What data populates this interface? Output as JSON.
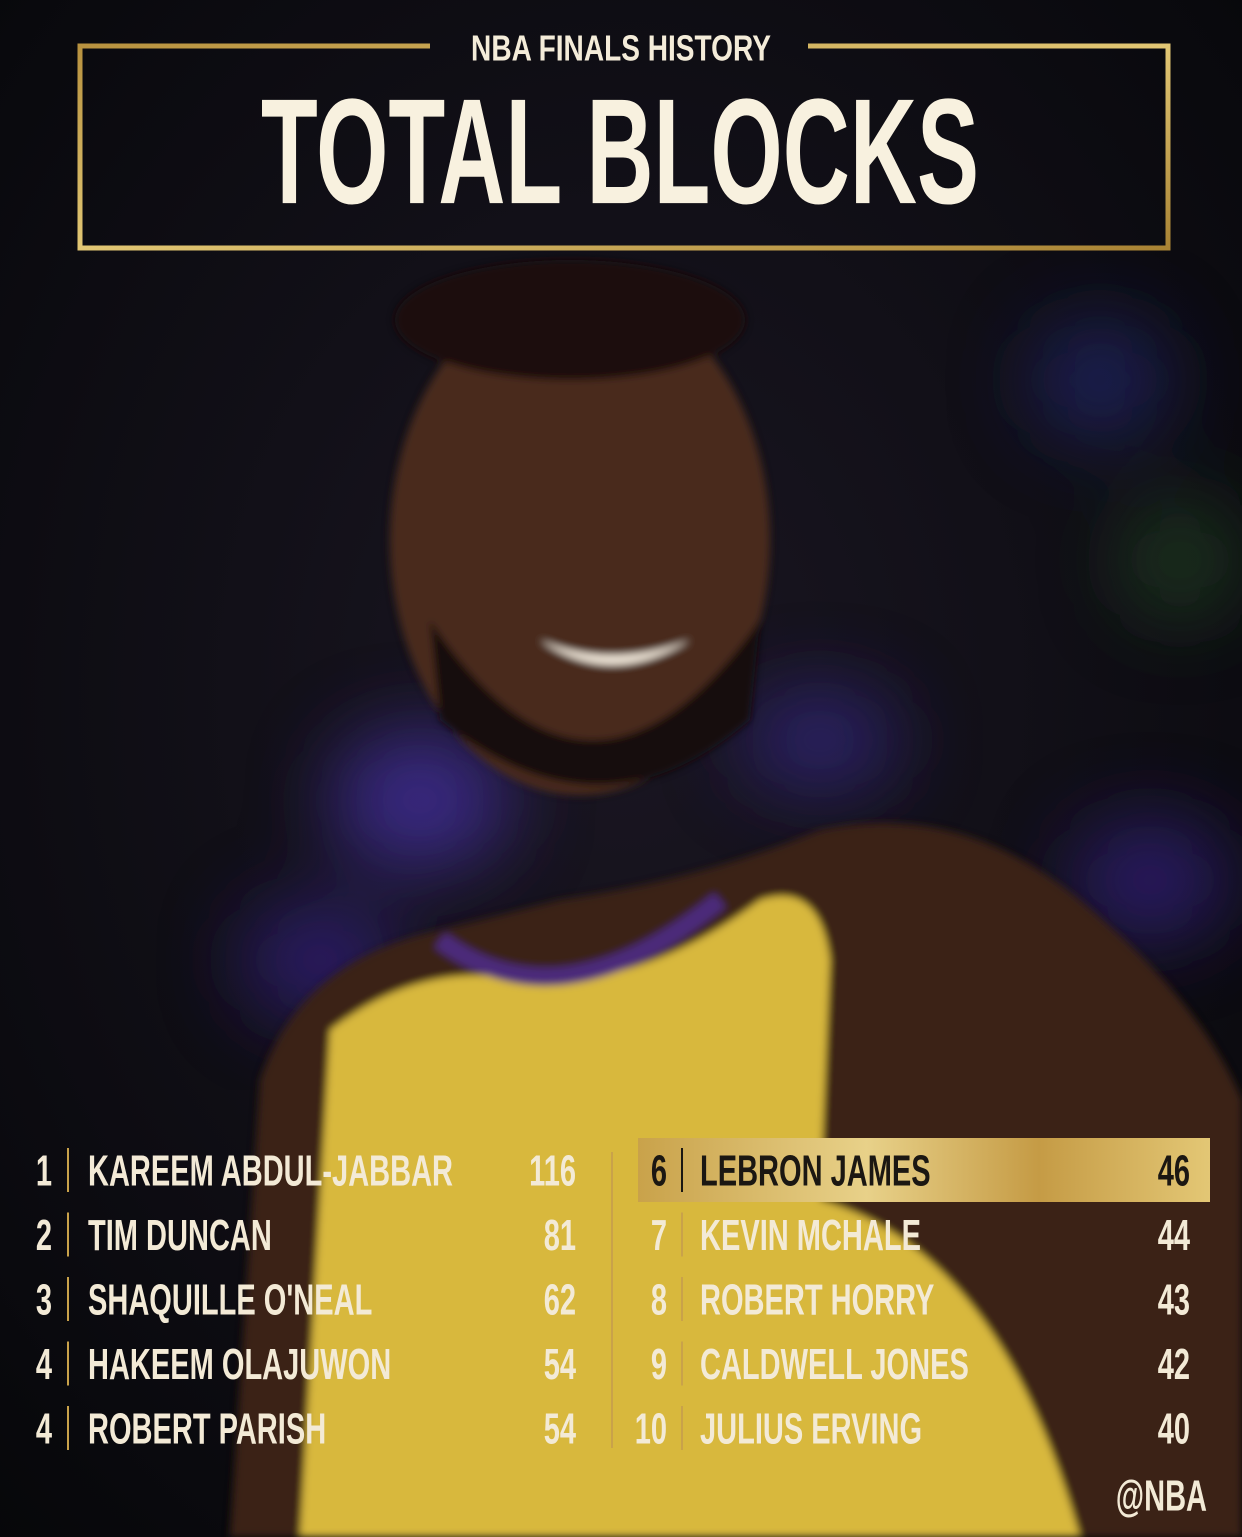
{
  "header": {
    "subtitle": "NBA FINALS HISTORY",
    "title": "TOTAL BLOCKS"
  },
  "table": {
    "rows": [
      {
        "rank": 1,
        "name": "KAREEM ABDUL-JABBAR",
        "value": 116
      },
      {
        "rank": 2,
        "name": "TIM DUNCAN",
        "value": 81
      },
      {
        "rank": 3,
        "name": "SHAQUILLE O'NEAL",
        "value": 62
      },
      {
        "rank": 4,
        "name": "HAKEEM OLAJUWON",
        "value": 54
      },
      {
        "rank": 4,
        "name": "ROBERT PARISH",
        "value": 54
      },
      {
        "rank": 6,
        "name": "LEBRON JAMES",
        "value": 46,
        "highlight": true
      },
      {
        "rank": 7,
        "name": "KEVIN MCHALE",
        "value": 44
      },
      {
        "rank": 8,
        "name": "ROBERT HORRY",
        "value": 43
      },
      {
        "rank": 9,
        "name": "CALDWELL JONES",
        "value": 42
      },
      {
        "rank": 10,
        "name": "JULIUS ERVING",
        "value": 40
      }
    ]
  },
  "footer": {
    "handle": "@NBA"
  }
}
